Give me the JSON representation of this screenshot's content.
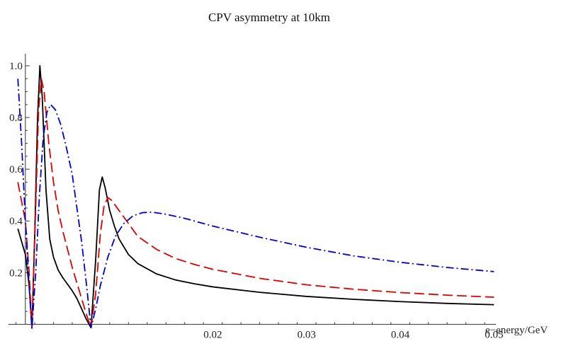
{
  "chart_data": {
    "type": "line",
    "title": "CPV asymmetry at 10km",
    "xlabel": "e−energy/GeV",
    "ylabel": "",
    "xlim": [
      -0.0018,
      0.0502
    ],
    "ylim": [
      -0.018,
      1.03
    ],
    "x_ticks": [
      {
        "value": 0.02,
        "label": "0.02"
      },
      {
        "value": 0.03,
        "label": "0.03"
      },
      {
        "value": 0.04,
        "label": "0.04"
      },
      {
        "value": 0.05,
        "label": "0.05"
      }
    ],
    "y_ticks": [
      {
        "value": 0.2,
        "label": "0.2"
      },
      {
        "value": 0.4,
        "label": "0.4"
      },
      {
        "value": 0.6,
        "label": "0.6"
      },
      {
        "value": 0.8,
        "label": "0.8"
      },
      {
        "value": 1.0,
        "label": "1.0"
      }
    ],
    "grid": false,
    "series": [
      {
        "color": "#000000",
        "dash": "solid",
        "points": [
          [
            -0.0008,
            0.37
          ],
          [
            0.0,
            0.27
          ],
          [
            0.0004,
            0.15
          ],
          [
            0.0007,
            -0.015
          ],
          [
            0.001,
            0.35
          ],
          [
            0.0013,
            0.8
          ],
          [
            0.00155,
            1.0
          ],
          [
            0.0018,
            0.88
          ],
          [
            0.0022,
            0.52
          ],
          [
            0.0026,
            0.33
          ],
          [
            0.003,
            0.26
          ],
          [
            0.0035,
            0.21
          ],
          [
            0.004,
            0.18
          ],
          [
            0.0045,
            0.155
          ],
          [
            0.005,
            0.13
          ],
          [
            0.0055,
            0.1
          ],
          [
            0.006,
            0.06
          ],
          [
            0.0065,
            0.02
          ],
          [
            0.007,
            -0.013
          ],
          [
            0.0075,
            0.25
          ],
          [
            0.0079,
            0.52
          ],
          [
            0.0082,
            0.57
          ],
          [
            0.0085,
            0.53
          ],
          [
            0.009,
            0.44
          ],
          [
            0.0095,
            0.38
          ],
          [
            0.01,
            0.33
          ],
          [
            0.011,
            0.27
          ],
          [
            0.012,
            0.235
          ],
          [
            0.014,
            0.195
          ],
          [
            0.016,
            0.172
          ],
          [
            0.018,
            0.157
          ],
          [
            0.02,
            0.145
          ],
          [
            0.025,
            0.124
          ],
          [
            0.03,
            0.108
          ],
          [
            0.035,
            0.097
          ],
          [
            0.04,
            0.088
          ],
          [
            0.045,
            0.081
          ],
          [
            0.05,
            0.076
          ]
        ]
      },
      {
        "color": "#e00000",
        "dash": "long-dash",
        "points": [
          [
            -0.0008,
            0.55
          ],
          [
            0.0,
            0.4
          ],
          [
            0.0004,
            0.2
          ],
          [
            0.0007,
            -0.015
          ],
          [
            0.0011,
            0.45
          ],
          [
            0.0014,
            0.82
          ],
          [
            0.0017,
            0.95
          ],
          [
            0.002,
            0.9
          ],
          [
            0.0025,
            0.7
          ],
          [
            0.003,
            0.55
          ],
          [
            0.0035,
            0.44
          ],
          [
            0.004,
            0.36
          ],
          [
            0.0045,
            0.29
          ],
          [
            0.005,
            0.22
          ],
          [
            0.0055,
            0.16
          ],
          [
            0.006,
            0.1
          ],
          [
            0.0065,
            0.04
          ],
          [
            0.007,
            -0.013
          ],
          [
            0.0075,
            0.12
          ],
          [
            0.008,
            0.35
          ],
          [
            0.0084,
            0.46
          ],
          [
            0.0088,
            0.49
          ],
          [
            0.0092,
            0.48
          ],
          [
            0.01,
            0.44
          ],
          [
            0.011,
            0.39
          ],
          [
            0.012,
            0.34
          ],
          [
            0.014,
            0.29
          ],
          [
            0.016,
            0.255
          ],
          [
            0.018,
            0.232
          ],
          [
            0.02,
            0.213
          ],
          [
            0.025,
            0.178
          ],
          [
            0.03,
            0.153
          ],
          [
            0.035,
            0.136
          ],
          [
            0.04,
            0.123
          ],
          [
            0.045,
            0.113
          ],
          [
            0.05,
            0.105
          ]
        ]
      },
      {
        "color": "#0000d0",
        "dash": "dash-dot",
        "points": [
          [
            -0.0008,
            0.95
          ],
          [
            -0.0004,
            0.7
          ],
          [
            0.0,
            0.4
          ],
          [
            0.0004,
            0.15
          ],
          [
            0.0007,
            -0.015
          ],
          [
            0.0011,
            0.2
          ],
          [
            0.0015,
            0.5
          ],
          [
            0.0019,
            0.72
          ],
          [
            0.0023,
            0.82
          ],
          [
            0.0027,
            0.85
          ],
          [
            0.0032,
            0.83
          ],
          [
            0.0038,
            0.77
          ],
          [
            0.0044,
            0.68
          ],
          [
            0.005,
            0.58
          ],
          [
            0.0055,
            0.45
          ],
          [
            0.006,
            0.32
          ],
          [
            0.0065,
            0.16
          ],
          [
            0.007,
            -0.013
          ],
          [
            0.0075,
            0.06
          ],
          [
            0.008,
            0.15
          ],
          [
            0.0088,
            0.26
          ],
          [
            0.0096,
            0.34
          ],
          [
            0.0105,
            0.39
          ],
          [
            0.0115,
            0.42
          ],
          [
            0.0125,
            0.432
          ],
          [
            0.0135,
            0.434
          ],
          [
            0.015,
            0.426
          ],
          [
            0.017,
            0.41
          ],
          [
            0.02,
            0.38
          ],
          [
            0.025,
            0.337
          ],
          [
            0.03,
            0.298
          ],
          [
            0.035,
            0.265
          ],
          [
            0.04,
            0.24
          ],
          [
            0.045,
            0.22
          ],
          [
            0.05,
            0.204
          ]
        ]
      }
    ]
  }
}
